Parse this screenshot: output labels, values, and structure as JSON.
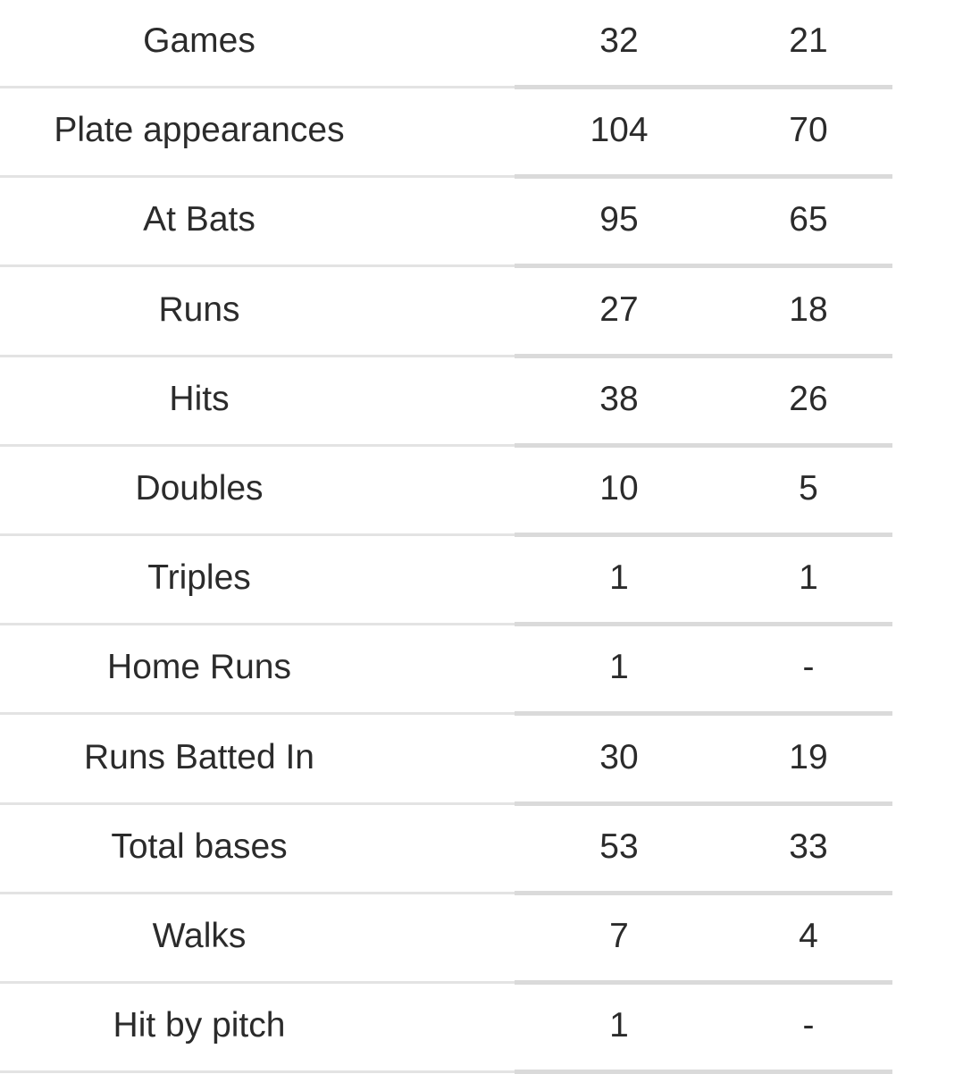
{
  "rows": [
    {
      "label": "Games",
      "a": "32",
      "b": "21"
    },
    {
      "label": "Plate appearances",
      "a": "104",
      "b": "70"
    },
    {
      "label": "At Bats",
      "a": "95",
      "b": "65"
    },
    {
      "label": "Runs",
      "a": "27",
      "b": "18"
    },
    {
      "label": "Hits",
      "a": "38",
      "b": "26"
    },
    {
      "label": "Doubles",
      "a": "10",
      "b": "5"
    },
    {
      "label": "Triples",
      "a": "1",
      "b": "1"
    },
    {
      "label": "Home Runs",
      "a": "1",
      "b": "-"
    },
    {
      "label": "Runs Batted In",
      "a": "30",
      "b": "19"
    },
    {
      "label": "Total bases",
      "a": "53",
      "b": "33"
    },
    {
      "label": "Walks",
      "a": "7",
      "b": "4"
    },
    {
      "label": "Hit by pitch",
      "a": "1",
      "b": "-"
    }
  ]
}
